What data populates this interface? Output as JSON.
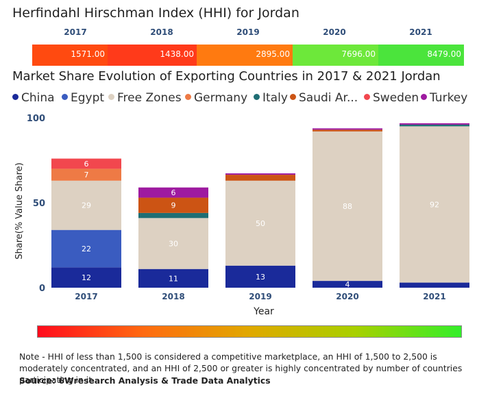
{
  "hhi": {
    "title": "Herfindahl Hirschman Index (HHI) for Jordan",
    "entries": [
      {
        "year": "2017",
        "value": "1571.00",
        "color": "#ff4a10"
      },
      {
        "year": "2018",
        "value": "1438.00",
        "color": "#ff3a1a"
      },
      {
        "year": "2019",
        "value": "2895.00",
        "color": "#ff7a10"
      },
      {
        "year": "2020",
        "value": "7696.00",
        "color": "#6de83a"
      },
      {
        "year": "2021",
        "value": "8479.00",
        "color": "#4be43c"
      }
    ]
  },
  "legend_items": [
    {
      "label": "China",
      "color": "#1a2a9a"
    },
    {
      "label": "Egypt",
      "color": "#3a5cc0"
    },
    {
      "label": "Free Zones",
      "color": "#ddd1c2"
    },
    {
      "label": "Germany",
      "color": "#ee7a45"
    },
    {
      "label": "Italy",
      "color": "#1f6e74"
    },
    {
      "label": "Saudi Ar...",
      "color": "#cc5414"
    },
    {
      "label": "Sweden",
      "color": "#f2474e"
    },
    {
      "label": "Turkey",
      "color": "#9e1aa0"
    }
  ],
  "chart_data": {
    "type": "bar",
    "stacked": true,
    "title": "Market Share Evolution of Exporting Countries in 2017 & 2021 Jordan",
    "xlabel": "Year",
    "ylabel": "Share(% Value Share)",
    "ylim": [
      0,
      100
    ],
    "yticks": [
      "0",
      "50",
      "100"
    ],
    "categories": [
      "2017",
      "2018",
      "2019",
      "2020",
      "2021"
    ],
    "series": [
      {
        "name": "China",
        "color": "#1a2a9a",
        "values": [
          12,
          11,
          13,
          4,
          3
        ],
        "labels": [
          "12",
          "11",
          "13",
          "4",
          ""
        ]
      },
      {
        "name": "Egypt",
        "color": "#3a5cc0",
        "values": [
          22,
          0,
          0,
          0,
          0
        ],
        "labels": [
          "22",
          "",
          "",
          "",
          ""
        ]
      },
      {
        "name": "Free Zones",
        "color": "#ddd1c2",
        "values": [
          29,
          30,
          50,
          88,
          92
        ],
        "labels": [
          "29",
          "30",
          "50",
          "88",
          "92"
        ]
      },
      {
        "name": "Germany",
        "color": "#ee7a45",
        "values": [
          7,
          0,
          0,
          0,
          0
        ],
        "labels": [
          "7",
          "",
          "",
          "",
          ""
        ]
      },
      {
        "name": "Italy",
        "color": "#1f6e74",
        "values": [
          0,
          3,
          0,
          0,
          1
        ],
        "labels": [
          "",
          "",
          "",
          "",
          ""
        ]
      },
      {
        "name": "Saudi Ar...",
        "color": "#cc5414",
        "values": [
          0,
          9,
          3.5,
          1,
          0
        ],
        "labels": [
          "",
          "9",
          "",
          "",
          ""
        ]
      },
      {
        "name": "Sweden",
        "color": "#f2474e",
        "values": [
          6,
          0,
          0,
          0,
          0
        ],
        "labels": [
          "6",
          "",
          "",
          "",
          ""
        ]
      },
      {
        "name": "Turkey",
        "color": "#9e1aa0",
        "values": [
          0,
          6,
          0.8,
          0.8,
          0.8
        ],
        "labels": [
          "",
          "6",
          "",
          "",
          ""
        ]
      }
    ]
  },
  "note": "Note - HHI of less than 1,500 is considered a competitive marketplace, an HHI of 1,500 to 2,500 is moderately concentrated, and an HHI of 2,500 or greater is highly concentrated by number of countries participating in it.",
  "source": "Source: 6Wresearch Analysis & Trade Data Analytics"
}
